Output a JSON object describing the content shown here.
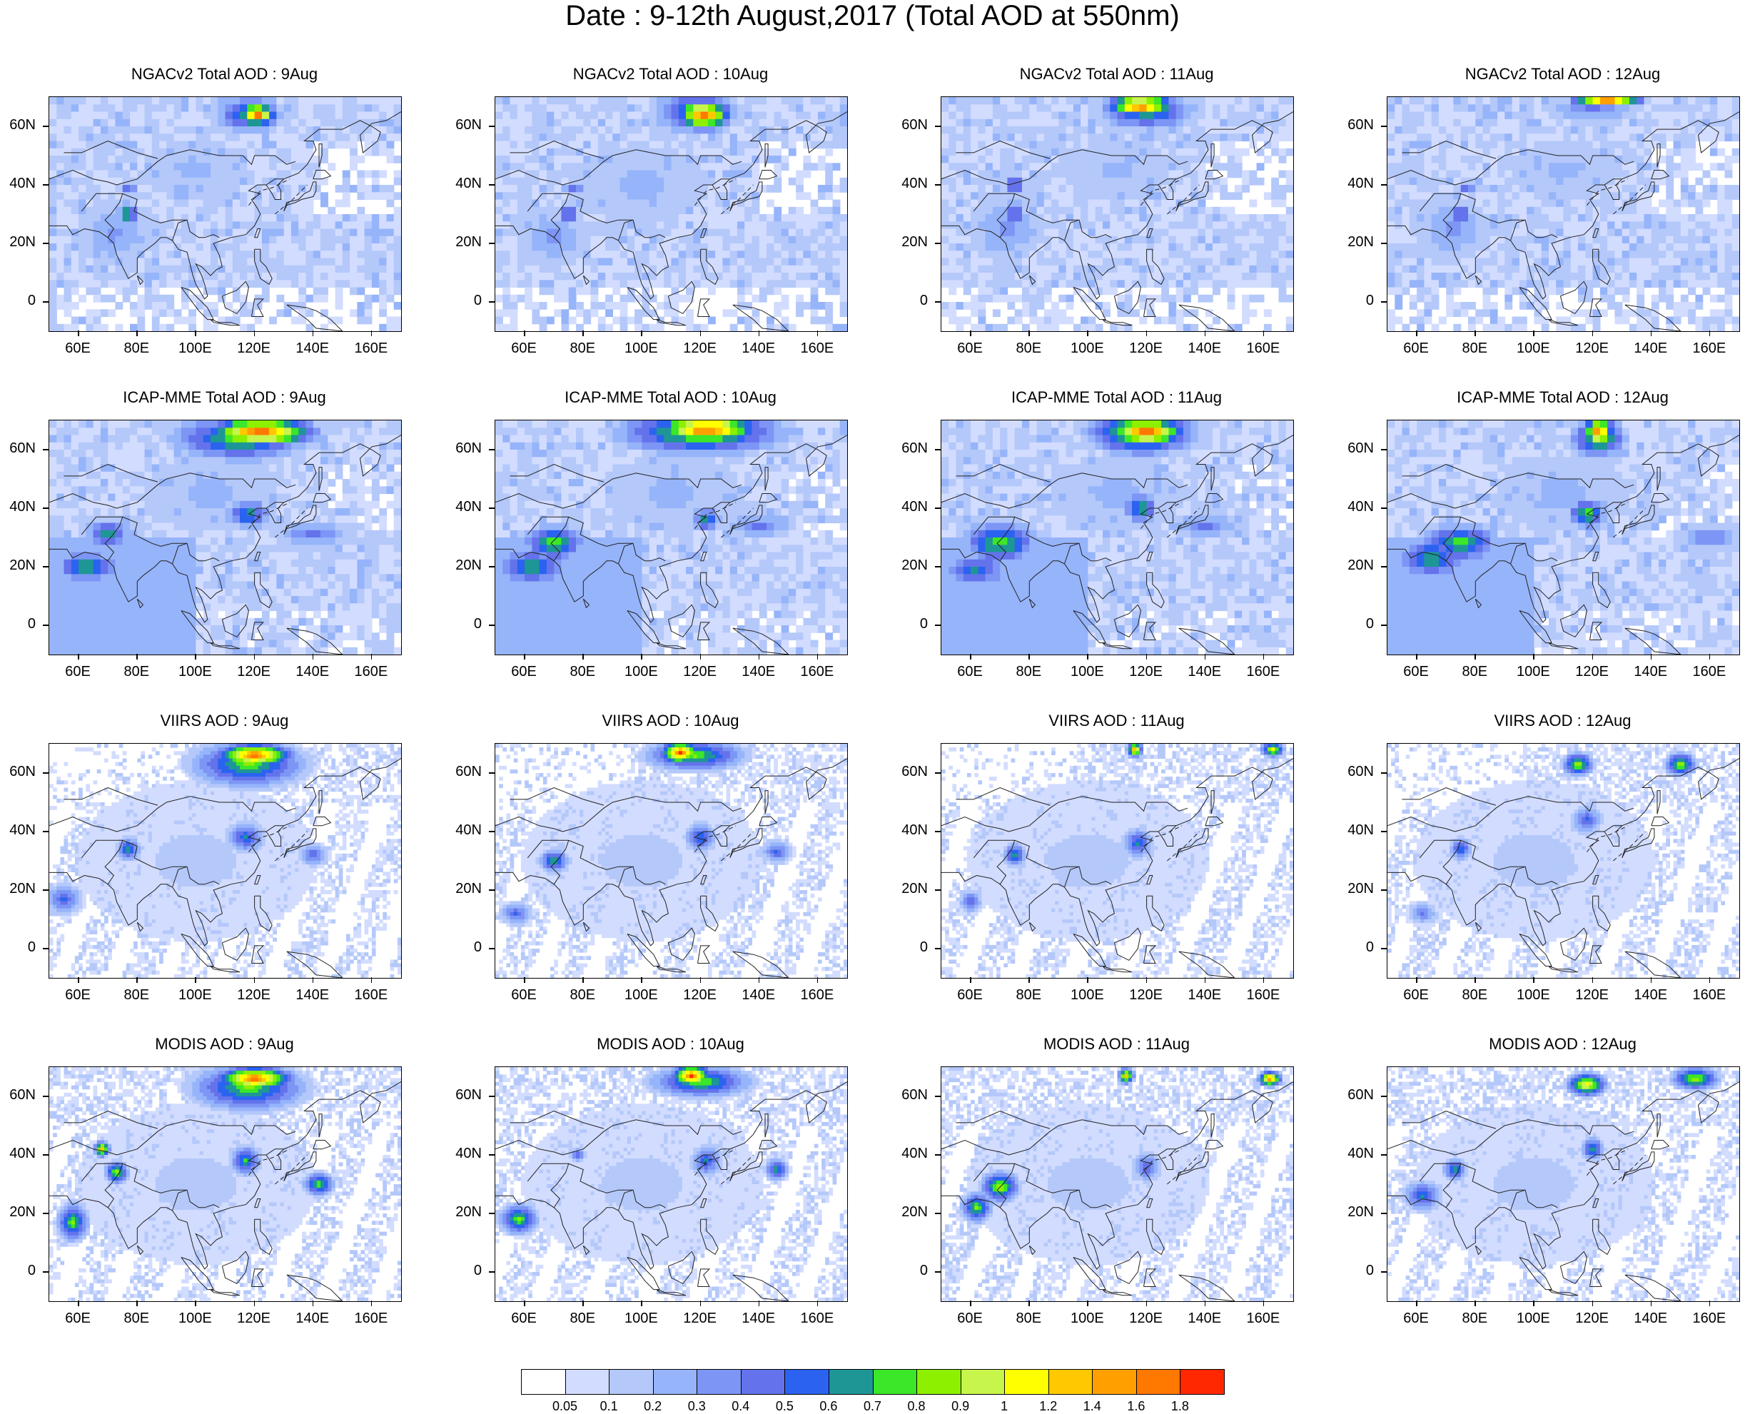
{
  "title": "Date : 9-12th August,2017 (Total AOD at 550nm)",
  "rows": [
    {
      "source": "NGACv2 Total AOD",
      "dates": [
        "9Aug",
        "10Aug",
        "11Aug",
        "12Aug"
      ]
    },
    {
      "source": "ICAP-MME Total AOD",
      "dates": [
        "9Aug",
        "10Aug",
        "11Aug",
        "12Aug"
      ]
    },
    {
      "source": "VIIRS AOD",
      "dates": [
        "9Aug",
        "10Aug",
        "11Aug",
        "12Aug"
      ]
    },
    {
      "source": "MODIS AOD",
      "dates": [
        "9Aug",
        "10Aug",
        "11Aug",
        "12Aug"
      ]
    }
  ],
  "panel_titles": [
    [
      "NGACv2 Total AOD : 9Aug",
      "NGACv2 Total AOD : 10Aug",
      "NGACv2 Total AOD : 11Aug",
      "NGACv2 Total AOD : 12Aug"
    ],
    [
      "ICAP-MME Total AOD : 9Aug",
      "ICAP-MME Total AOD : 10Aug",
      "ICAP-MME Total AOD : 11Aug",
      "ICAP-MME Total AOD : 12Aug"
    ],
    [
      "VIIRS AOD : 9Aug",
      "VIIRS AOD : 10Aug",
      "VIIRS AOD : 11Aug",
      "VIIRS AOD : 12Aug"
    ],
    [
      "MODIS AOD : 9Aug",
      "MODIS AOD : 10Aug",
      "MODIS AOD : 11Aug",
      "MODIS AOD : 12Aug"
    ]
  ],
  "map_extent": {
    "lon": [
      50,
      170
    ],
    "lat": [
      -10,
      70
    ]
  },
  "lat_ticks": [
    "60N",
    "40N",
    "20N",
    "0"
  ],
  "lat_values": [
    60,
    40,
    20,
    0
  ],
  "lon_ticks": [
    "60E",
    "80E",
    "100E",
    "120E",
    "140E",
    "160E"
  ],
  "lon_values": [
    60,
    80,
    100,
    120,
    140,
    160
  ],
  "colorbar": {
    "labels": [
      "0.05",
      "0.1",
      "0.2",
      "0.3",
      "0.4",
      "0.5",
      "0.6",
      "0.7",
      "0.8",
      "0.9",
      "1",
      "1.2",
      "1.4",
      "1.6",
      "1.8"
    ],
    "colors": [
      "#ffffff",
      "#d2dcff",
      "#b4c8fa",
      "#96b4fa",
      "#7d96f5",
      "#6473eb",
      "#2b63f0",
      "#1e9696",
      "#3ce628",
      "#8cf000",
      "#c8f54b",
      "#ffff00",
      "#ffc800",
      "#ffa000",
      "#ff7800",
      "#ff2800"
    ]
  }
}
